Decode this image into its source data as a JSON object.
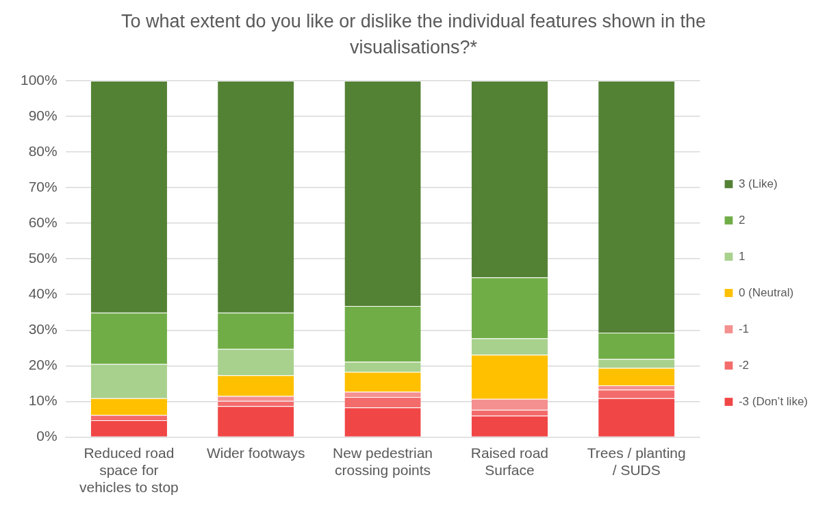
{
  "chart_data": {
    "type": "bar",
    "title": "To what extent do you like or dislike the individual features shown in the visualisations?*",
    "categories": [
      "Reduced road space for vehicles to stop",
      "Wider footways",
      "New pedestrian crossing points",
      "Raised road Surface",
      "Trees / planting / SUDS"
    ],
    "stacked": true,
    "ylim": [
      0,
      100
    ],
    "yticks": [
      {
        "value": 0,
        "label": "0%"
      },
      {
        "value": 10,
        "label": "10%"
      },
      {
        "value": 20,
        "label": "20%"
      },
      {
        "value": 30,
        "label": "30%"
      },
      {
        "value": 40,
        "label": "40%"
      },
      {
        "value": 50,
        "label": "50%"
      },
      {
        "value": 60,
        "label": "60%"
      },
      {
        "value": 70,
        "label": "70%"
      },
      {
        "value": 80,
        "label": "80%"
      },
      {
        "value": 90,
        "label": "90%"
      },
      {
        "value": 100,
        "label": "100%"
      }
    ],
    "grid": "y",
    "legend": "right",
    "series": [
      {
        "name": "-3 (Don’t like)",
        "color": "#f14646",
        "values": [
          4.7,
          8.7,
          8.3,
          6.0,
          10.9
        ]
      },
      {
        "name": "-2",
        "color": "#f36b6b",
        "values": [
          1.5,
          1.4,
          2.9,
          1.6,
          2.4
        ]
      },
      {
        "name": "-1",
        "color": "#f49090",
        "values": [
          0,
          1.4,
          1.5,
          3.1,
          1.2
        ]
      },
      {
        "name": "0 (Neutral)",
        "color": "#ffc000",
        "values": [
          4.7,
          5.8,
          5.6,
          12.4,
          4.9
        ]
      },
      {
        "name": "1",
        "color": "#a9d18e",
        "values": [
          9.6,
          7.4,
          2.8,
          4.6,
          2.5
        ]
      },
      {
        "name": "2",
        "color": "#70ad47",
        "values": [
          14.4,
          10.2,
          15.7,
          17.1,
          7.4
        ]
      },
      {
        "name": "3 (Like)",
        "color": "#548235",
        "values": [
          65.1,
          65.1,
          63.2,
          55.2,
          70.7
        ]
      }
    ]
  }
}
